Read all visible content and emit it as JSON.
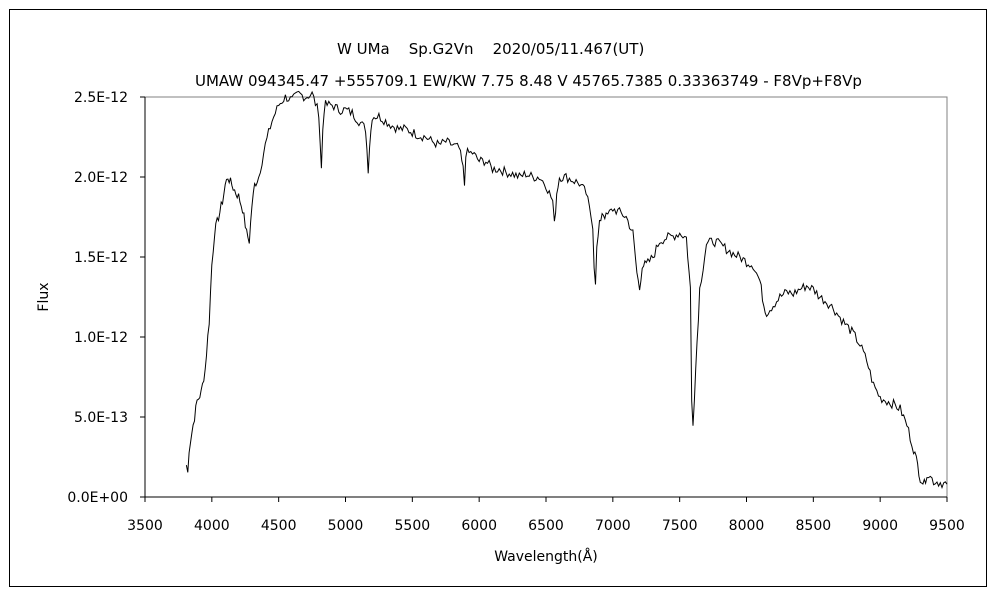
{
  "chart_data": {
    "type": "line",
    "title": "W UMa    Sp.G2Vn    2020/05/11.467(UT)",
    "subtitle": "UMAW 094345.47 +555709.1 EW/KW 7.75 8.48 V 45765.7385 0.33363749 - F8Vp+F8Vp",
    "xlabel": "Wavelength(Å)",
    "ylabel": "Flux",
    "xlim": [
      3500,
      9500
    ],
    "ylim": [
      0,
      2.5e-12
    ],
    "x_ticks": [
      "3500",
      "4000",
      "4500",
      "5000",
      "5500",
      "6000",
      "6500",
      "7000",
      "7500",
      "8000",
      "8500",
      "9000",
      "9500"
    ],
    "y_ticks": [
      "0.0E+00",
      "5.0E-13",
      "1.0E-12",
      "1.5E-12",
      "2.0E-12",
      "2.5E-12"
    ],
    "grid": false,
    "legend": "none",
    "line_color": "#000000",
    "series": [
      {
        "x": [
          3810,
          3820,
          3830,
          3850,
          3870,
          3890,
          3920,
          3950,
          3980,
          4000,
          4020,
          4050,
          4080,
          4100,
          4120,
          4150,
          4180,
          4200,
          4230,
          4260,
          4280,
          4300,
          4320,
          4350,
          4400,
          4450,
          4500,
          4550,
          4600,
          4650,
          4700,
          4750,
          4800,
          4820,
          4830,
          4840,
          4850,
          4900,
          4950,
          5000,
          5050,
          5100,
          5150,
          5170,
          5180,
          5200,
          5250,
          5300,
          5350,
          5400,
          5450,
          5500,
          5550,
          5600,
          5650,
          5700,
          5750,
          5800,
          5850,
          5880,
          5890,
          5900,
          5950,
          6000,
          6050,
          6100,
          6150,
          6200,
          6250,
          6300,
          6350,
          6400,
          6450,
          6500,
          6550,
          6563,
          6580,
          6600,
          6650,
          6700,
          6750,
          6800,
          6850,
          6860,
          6870,
          6880,
          6900,
          6920,
          6950,
          7000,
          7050,
          7100,
          7150,
          7180,
          7200,
          7220,
          7250,
          7300,
          7350,
          7400,
          7450,
          7500,
          7550,
          7580,
          7590,
          7600,
          7620,
          7650,
          7700,
          7750,
          7800,
          7850,
          7900,
          7950,
          8000,
          8050,
          8100,
          8130,
          8150,
          8200,
          8250,
          8300,
          8350,
          8400,
          8450,
          8500,
          8550,
          8600,
          8650,
          8700,
          8750,
          8800,
          8850,
          8900,
          8950,
          9000,
          9050,
          9100,
          9150,
          9200,
          9250,
          9280,
          9300,
          9330,
          9350,
          9400,
          9450,
          9500
        ],
        "y": [
          2e-13,
          1.5e-13,
          3e-13,
          4e-13,
          5e-13,
          6e-13,
          6.5e-13,
          8e-13,
          1.1e-12,
          1.45e-12,
          1.65e-12,
          1.75e-12,
          1.85e-12,
          1.95e-12,
          2e-12,
          1.95e-12,
          1.9e-12,
          1.88e-12,
          1.8e-12,
          1.65e-12,
          1.6e-12,
          1.82e-12,
          1.95e-12,
          2e-12,
          2.2e-12,
          2.35e-12,
          2.45e-12,
          2.5e-12,
          2.48e-12,
          2.52e-12,
          2.5e-12,
          2.52e-12,
          2.4e-12,
          2.05e-12,
          2.3e-12,
          2.42e-12,
          2.45e-12,
          2.45e-12,
          2.42e-12,
          2.42e-12,
          2.4e-12,
          2.35e-12,
          2.3e-12,
          2.05e-12,
          2.2e-12,
          2.38e-12,
          2.38e-12,
          2.35e-12,
          2.32e-12,
          2.3e-12,
          2.3e-12,
          2.28e-12,
          2.26e-12,
          2.25e-12,
          2.22e-12,
          2.2e-12,
          2.22e-12,
          2.2e-12,
          2.18e-12,
          2.05e-12,
          1.95e-12,
          2.15e-12,
          2.15e-12,
          2.1e-12,
          2.1e-12,
          2.05e-12,
          2.05e-12,
          2.03e-12,
          2.02e-12,
          2e-12,
          2.02e-12,
          2e-12,
          2e-12,
          1.95e-12,
          1.85e-12,
          1.7e-12,
          1.9e-12,
          2e-12,
          2e-12,
          1.98e-12,
          1.96e-12,
          1.9e-12,
          1.7e-12,
          1.45e-12,
          1.35e-12,
          1.55e-12,
          1.7e-12,
          1.78e-12,
          1.75e-12,
          1.8e-12,
          1.78e-12,
          1.75e-12,
          1.65e-12,
          1.4e-12,
          1.3e-12,
          1.45e-12,
          1.45e-12,
          1.5e-12,
          1.6e-12,
          1.62e-12,
          1.63e-12,
          1.65e-12,
          1.62e-12,
          1.3e-12,
          6e-13,
          4.7e-13,
          8e-13,
          1.3e-12,
          1.58e-12,
          1.6e-12,
          1.58e-12,
          1.55e-12,
          1.52e-12,
          1.5e-12,
          1.47e-12,
          1.45e-12,
          1.35e-12,
          1.2e-12,
          1.15e-12,
          1.2e-12,
          1.25e-12,
          1.28e-12,
          1.27e-12,
          1.3e-12,
          1.32e-12,
          1.3e-12,
          1.25e-12,
          1.22e-12,
          1.18e-12,
          1.12e-12,
          1.07e-12,
          1.02e-12,
          9.5e-13,
          8.5e-13,
          7e-13,
          6.2e-13,
          6e-13,
          5.8e-13,
          5.5e-13,
          4.5e-13,
          3e-13,
          2e-13,
          1.2e-13,
          8e-14,
          1.5e-13,
          1e-13,
          9e-14,
          8e-14
        ]
      }
    ]
  }
}
